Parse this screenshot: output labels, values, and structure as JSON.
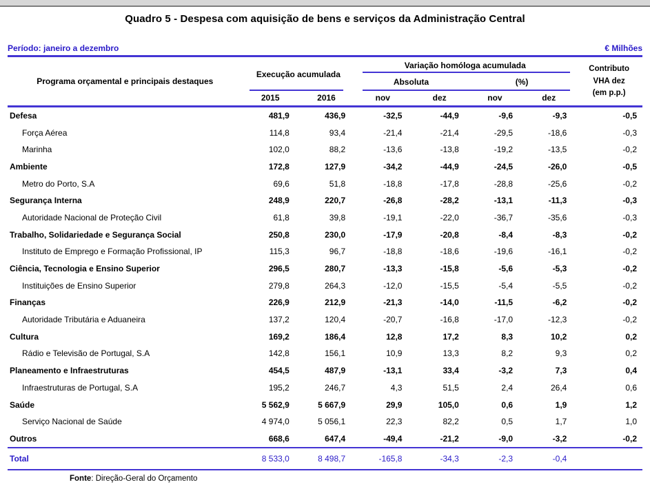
{
  "title": "Quadro 5 - Despesa com aquisição de bens e serviços da Administração Central",
  "meta": {
    "period_label": "Período: janeiro a dezembro",
    "unit_label": "€ Milhões"
  },
  "colors": {
    "accent_line": "#4334d4",
    "accent_text": "#2a1bc9"
  },
  "table": {
    "col_program": "Programa orçamental e principais destaques",
    "group_execucao": "Execução acumulada",
    "group_variacao": "Variação homóloga acumulada",
    "group_absoluta": "Absoluta",
    "group_pct": "(%)",
    "col_contributo": "Contributo\nVHA dez\n(em p.p.)",
    "years": [
      "2015",
      "2016"
    ],
    "months": [
      "nov",
      "dez",
      "nov",
      "dez"
    ],
    "rows": [
      {
        "label": "Defesa",
        "bold": true,
        "values": [
          "481,9",
          "436,9",
          "-32,5",
          "-44,9",
          "-9,6",
          "-9,3",
          "-0,5"
        ]
      },
      {
        "label": "Força Aérea",
        "bold": false,
        "values": [
          "114,8",
          "93,4",
          "-21,4",
          "-21,4",
          "-29,5",
          "-18,6",
          "-0,3"
        ]
      },
      {
        "label": "Marinha",
        "bold": false,
        "values": [
          "102,0",
          "88,2",
          "-13,6",
          "-13,8",
          "-19,2",
          "-13,5",
          "-0,2"
        ]
      },
      {
        "label": "Ambiente",
        "bold": true,
        "values": [
          "172,8",
          "127,9",
          "-34,2",
          "-44,9",
          "-24,5",
          "-26,0",
          "-0,5"
        ]
      },
      {
        "label": "Metro do Porto, S.A",
        "bold": false,
        "values": [
          "69,6",
          "51,8",
          "-18,8",
          "-17,8",
          "-28,8",
          "-25,6",
          "-0,2"
        ]
      },
      {
        "label": "Segurança Interna",
        "bold": true,
        "values": [
          "248,9",
          "220,7",
          "-26,8",
          "-28,2",
          "-13,1",
          "-11,3",
          "-0,3"
        ]
      },
      {
        "label": "Autoridade Nacional de Proteção Civil",
        "bold": false,
        "values": [
          "61,8",
          "39,8",
          "-19,1",
          "-22,0",
          "-36,7",
          "-35,6",
          "-0,3"
        ]
      },
      {
        "label": "Trabalho, Solidariedade e Segurança Social",
        "bold": true,
        "values": [
          "250,8",
          "230,0",
          "-17,9",
          "-20,8",
          "-8,4",
          "-8,3",
          "-0,2"
        ]
      },
      {
        "label": "Instituto de Emprego e Formação Profissional, IP",
        "bold": false,
        "values": [
          "115,3",
          "96,7",
          "-18,8",
          "-18,6",
          "-19,6",
          "-16,1",
          "-0,2"
        ]
      },
      {
        "label": "Ciência, Tecnologia e Ensino Superior",
        "bold": true,
        "values": [
          "296,5",
          "280,7",
          "-13,3",
          "-15,8",
          "-5,6",
          "-5,3",
          "-0,2"
        ]
      },
      {
        "label": "Instituições de Ensino Superior",
        "bold": false,
        "values": [
          "279,8",
          "264,3",
          "-12,0",
          "-15,5",
          "-5,4",
          "-5,5",
          "-0,2"
        ]
      },
      {
        "label": "Finanças",
        "bold": true,
        "values": [
          "226,9",
          "212,9",
          "-21,3",
          "-14,0",
          "-11,5",
          "-6,2",
          "-0,2"
        ]
      },
      {
        "label": "Autoridade Tributária e Aduaneira",
        "bold": false,
        "values": [
          "137,2",
          "120,4",
          "-20,7",
          "-16,8",
          "-17,0",
          "-12,3",
          "-0,2"
        ]
      },
      {
        "label": "Cultura",
        "bold": true,
        "values": [
          "169,2",
          "186,4",
          "12,8",
          "17,2",
          "8,3",
          "10,2",
          "0,2"
        ]
      },
      {
        "label": "Rádio e Televisão de Portugal, S.A",
        "bold": false,
        "values": [
          "142,8",
          "156,1",
          "10,9",
          "13,3",
          "8,2",
          "9,3",
          "0,2"
        ]
      },
      {
        "label": "Planeamento e Infraestruturas",
        "bold": true,
        "values": [
          "454,5",
          "487,9",
          "-13,1",
          "33,4",
          "-3,2",
          "7,3",
          "0,4"
        ]
      },
      {
        "label": "Infraestruturas de Portugal, S.A",
        "bold": false,
        "values": [
          "195,2",
          "246,7",
          "4,3",
          "51,5",
          "2,4",
          "26,4",
          "0,6"
        ]
      },
      {
        "label": "Saúde",
        "bold": true,
        "values": [
          "5 562,9",
          "5 667,9",
          "29,9",
          "105,0",
          "0,6",
          "1,9",
          "1,2"
        ]
      },
      {
        "label": "Serviço Nacional de Saúde",
        "bold": false,
        "values": [
          "4 974,0",
          "5 056,1",
          "22,3",
          "82,2",
          "0,5",
          "1,7",
          "1,0"
        ]
      },
      {
        "label": "Outros",
        "bold": true,
        "values": [
          "668,6",
          "647,4",
          "-49,4",
          "-21,2",
          "-9,0",
          "-3,2",
          "-0,2"
        ]
      }
    ],
    "total": {
      "label": "Total",
      "values": [
        "8 533,0",
        "8 498,7",
        "-165,8",
        "-34,3",
        "-2,3",
        "-0,4",
        ""
      ]
    }
  },
  "footer": {
    "source_label": "Fonte",
    "source_text": ": Direção-Geral do Orçamento"
  }
}
